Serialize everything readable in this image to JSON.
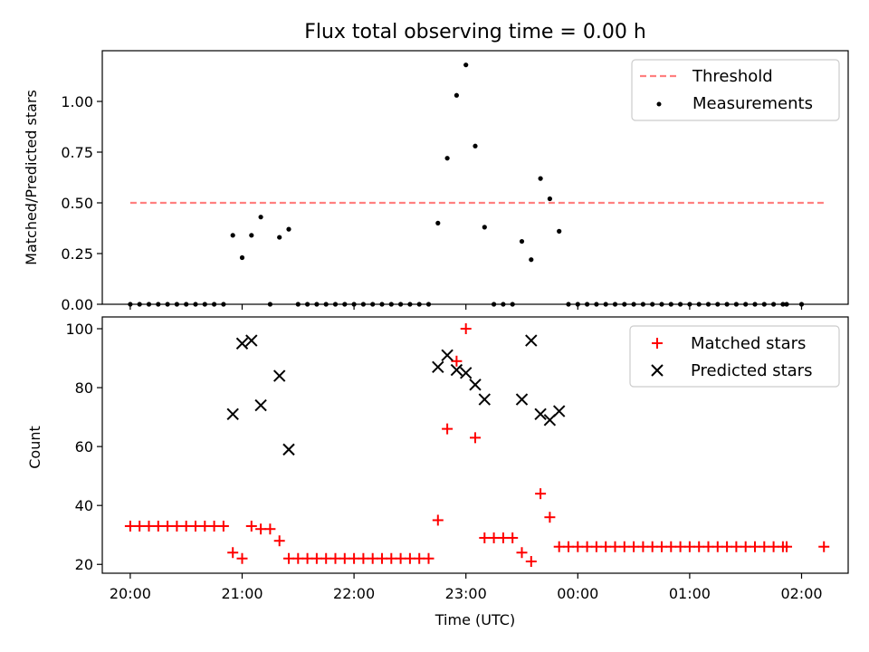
{
  "title": "Flux total observing time = 0.00 h",
  "chart_data": [
    {
      "type": "scatter",
      "panel": "top",
      "ylabel": "Matched/Predicted stars",
      "ylim": [
        0,
        1.25
      ],
      "yticks": [
        {
          "value": 0.0,
          "label": "0.00"
        },
        {
          "value": 0.25,
          "label": "0.25"
        },
        {
          "value": 0.5,
          "label": "0.50"
        },
        {
          "value": 0.75,
          "label": "0.75"
        },
        {
          "value": 1.0,
          "label": "1.00"
        }
      ],
      "threshold": {
        "name": "Threshold",
        "value": 0.5,
        "x_start": "20:00",
        "x_end": "02:12",
        "color": "#ff7f7f"
      },
      "series": [
        {
          "name": "Measurements",
          "color": "#000000",
          "marker": "dot",
          "points": [
            [
              "20:00",
              0
            ],
            [
              "20:05",
              0
            ],
            [
              "20:10",
              0
            ],
            [
              "20:15",
              0
            ],
            [
              "20:20",
              0
            ],
            [
              "20:25",
              0
            ],
            [
              "20:30",
              0
            ],
            [
              "20:35",
              0
            ],
            [
              "20:40",
              0
            ],
            [
              "20:45",
              0
            ],
            [
              "20:50",
              0
            ],
            [
              "20:55",
              0.34
            ],
            [
              "21:00",
              0.23
            ],
            [
              "21:05",
              0.34
            ],
            [
              "21:10",
              0.43
            ],
            [
              "21:15",
              0
            ],
            [
              "21:20",
              0.33
            ],
            [
              "21:25",
              0.37
            ],
            [
              "21:30",
              0
            ],
            [
              "21:35",
              0
            ],
            [
              "21:40",
              0
            ],
            [
              "21:45",
              0
            ],
            [
              "21:50",
              0
            ],
            [
              "21:55",
              0
            ],
            [
              "22:00",
              0
            ],
            [
              "22:05",
              0
            ],
            [
              "22:10",
              0
            ],
            [
              "22:15",
              0
            ],
            [
              "22:20",
              0
            ],
            [
              "22:25",
              0
            ],
            [
              "22:30",
              0
            ],
            [
              "22:35",
              0
            ],
            [
              "22:40",
              0
            ],
            [
              "22:45",
              0.4
            ],
            [
              "22:50",
              0.72
            ],
            [
              "22:55",
              1.03
            ],
            [
              "23:00",
              1.18
            ],
            [
              "23:05",
              0.78
            ],
            [
              "23:10",
              0.38
            ],
            [
              "23:15",
              0
            ],
            [
              "23:20",
              0
            ],
            [
              "23:25",
              0
            ],
            [
              "23:30",
              0.31
            ],
            [
              "23:35",
              0.22
            ],
            [
              "23:40",
              0.62
            ],
            [
              "23:45",
              0.52
            ],
            [
              "23:50",
              0.36
            ],
            [
              "23:55",
              0
            ],
            [
              "00:00",
              0
            ],
            [
              "00:05",
              0
            ],
            [
              "00:10",
              0
            ],
            [
              "00:15",
              0
            ],
            [
              "00:20",
              0
            ],
            [
              "00:25",
              0
            ],
            [
              "00:30",
              0
            ],
            [
              "00:35",
              0
            ],
            [
              "00:40",
              0
            ],
            [
              "00:45",
              0
            ],
            [
              "00:50",
              0
            ],
            [
              "00:55",
              0
            ],
            [
              "01:00",
              0
            ],
            [
              "01:05",
              0
            ],
            [
              "01:10",
              0
            ],
            [
              "01:15",
              0
            ],
            [
              "01:20",
              0
            ],
            [
              "01:25",
              0
            ],
            [
              "01:30",
              0
            ],
            [
              "01:35",
              0
            ],
            [
              "01:40",
              0
            ],
            [
              "01:45",
              0
            ],
            [
              "01:50",
              0
            ],
            [
              "01:52",
              0
            ],
            [
              "02:00",
              0
            ]
          ]
        }
      ],
      "legend": {
        "placement": "top-right",
        "entries": [
          "Threshold",
          "Measurements"
        ]
      }
    },
    {
      "type": "scatter",
      "panel": "bottom",
      "ylabel": "Count",
      "xlabel": "Time (UTC)",
      "ylim": [
        17,
        104
      ],
      "yticks": [
        {
          "value": 20,
          "label": "20"
        },
        {
          "value": 40,
          "label": "40"
        },
        {
          "value": 60,
          "label": "60"
        },
        {
          "value": 80,
          "label": "80"
        },
        {
          "value": 100,
          "label": "100"
        }
      ],
      "x_range": [
        "19:45",
        "02:25"
      ],
      "xticks": [
        "20:00",
        "21:00",
        "22:00",
        "23:00",
        "00:00",
        "01:00",
        "02:00"
      ],
      "series": [
        {
          "name": "Matched stars",
          "color": "#ff0000",
          "marker": "plus",
          "points": [
            [
              "20:00",
              33
            ],
            [
              "20:05",
              33
            ],
            [
              "20:10",
              33
            ],
            [
              "20:15",
              33
            ],
            [
              "20:20",
              33
            ],
            [
              "20:25",
              33
            ],
            [
              "20:30",
              33
            ],
            [
              "20:35",
              33
            ],
            [
              "20:40",
              33
            ],
            [
              "20:45",
              33
            ],
            [
              "20:50",
              33
            ],
            [
              "20:55",
              24
            ],
            [
              "21:00",
              22
            ],
            [
              "21:05",
              33
            ],
            [
              "21:10",
              32
            ],
            [
              "21:15",
              32
            ],
            [
              "21:20",
              28
            ],
            [
              "21:25",
              22
            ],
            [
              "21:30",
              22
            ],
            [
              "21:35",
              22
            ],
            [
              "21:40",
              22
            ],
            [
              "21:45",
              22
            ],
            [
              "21:50",
              22
            ],
            [
              "21:55",
              22
            ],
            [
              "22:00",
              22
            ],
            [
              "22:05",
              22
            ],
            [
              "22:10",
              22
            ],
            [
              "22:15",
              22
            ],
            [
              "22:20",
              22
            ],
            [
              "22:25",
              22
            ],
            [
              "22:30",
              22
            ],
            [
              "22:35",
              22
            ],
            [
              "22:40",
              22
            ],
            [
              "22:45",
              35
            ],
            [
              "22:50",
              66
            ],
            [
              "22:55",
              89
            ],
            [
              "23:00",
              100
            ],
            [
              "23:05",
              63
            ],
            [
              "23:10",
              29
            ],
            [
              "23:15",
              29
            ],
            [
              "23:20",
              29
            ],
            [
              "23:25",
              29
            ],
            [
              "23:30",
              24
            ],
            [
              "23:35",
              21
            ],
            [
              "23:40",
              44
            ],
            [
              "23:45",
              36
            ],
            [
              "23:50",
              26
            ],
            [
              "23:55",
              26
            ],
            [
              "00:00",
              26
            ],
            [
              "00:05",
              26
            ],
            [
              "00:10",
              26
            ],
            [
              "00:15",
              26
            ],
            [
              "00:20",
              26
            ],
            [
              "00:25",
              26
            ],
            [
              "00:30",
              26
            ],
            [
              "00:35",
              26
            ],
            [
              "00:40",
              26
            ],
            [
              "00:45",
              26
            ],
            [
              "00:50",
              26
            ],
            [
              "00:55",
              26
            ],
            [
              "01:00",
              26
            ],
            [
              "01:05",
              26
            ],
            [
              "01:10",
              26
            ],
            [
              "01:15",
              26
            ],
            [
              "01:20",
              26
            ],
            [
              "01:25",
              26
            ],
            [
              "01:30",
              26
            ],
            [
              "01:35",
              26
            ],
            [
              "01:40",
              26
            ],
            [
              "01:45",
              26
            ],
            [
              "01:50",
              26
            ],
            [
              "01:52",
              26
            ],
            [
              "02:12",
              26
            ]
          ]
        },
        {
          "name": "Predicted stars",
          "color": "#000000",
          "marker": "x",
          "points": [
            [
              "20:55",
              71
            ],
            [
              "21:00",
              95
            ],
            [
              "21:05",
              96
            ],
            [
              "21:10",
              74
            ],
            [
              "21:20",
              84
            ],
            [
              "21:25",
              59
            ],
            [
              "22:45",
              87
            ],
            [
              "22:50",
              91
            ],
            [
              "22:55",
              86
            ],
            [
              "23:00",
              85
            ],
            [
              "23:05",
              81
            ],
            [
              "23:10",
              76
            ],
            [
              "23:30",
              76
            ],
            [
              "23:35",
              96
            ],
            [
              "23:40",
              71
            ],
            [
              "23:45",
              69
            ],
            [
              "23:50",
              72
            ]
          ]
        }
      ],
      "legend": {
        "placement": "top-right",
        "entries": [
          "Matched stars",
          "Predicted stars"
        ]
      }
    }
  ]
}
